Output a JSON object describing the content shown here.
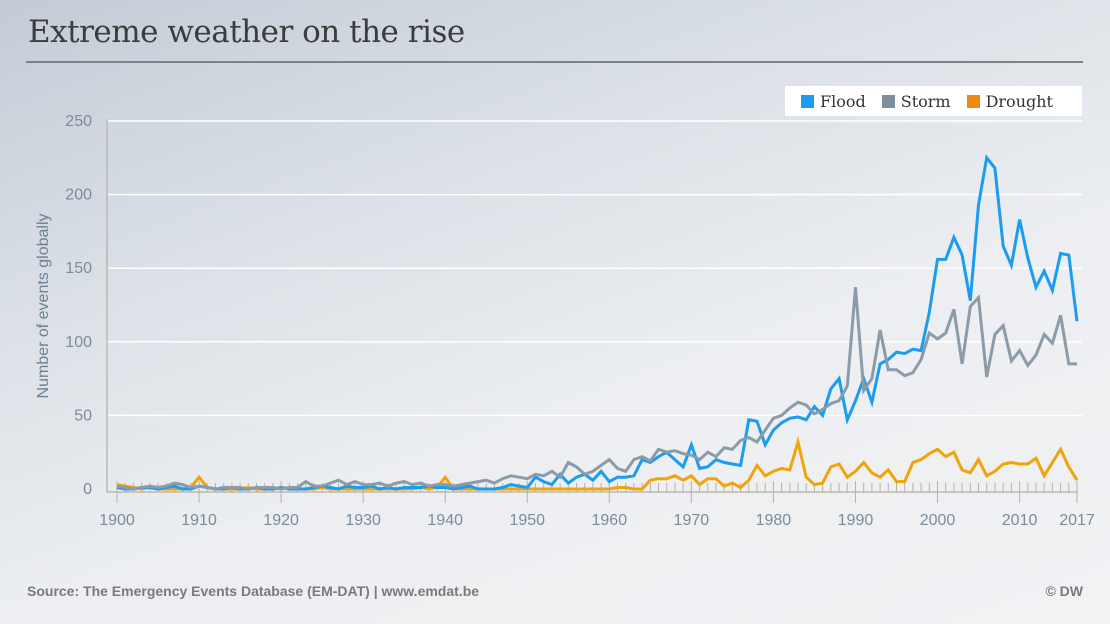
{
  "header": {
    "title": "Extreme weather on the rise"
  },
  "footer": {
    "source": "Source: The Emergency Events Database (EM-DAT) | www.emdat.be",
    "copyright": "© DW"
  },
  "chart_data": {
    "type": "line",
    "title": "Extreme weather on the rise",
    "xlabel": "",
    "ylabel": "Number of events globally",
    "xlim": [
      1900,
      2017
    ],
    "ylim": [
      0,
      250
    ],
    "yticks": [
      0,
      50,
      100,
      150,
      200,
      250
    ],
    "xticks": [
      1900,
      1910,
      1920,
      1930,
      1940,
      1950,
      1960,
      1970,
      1980,
      1990,
      2000,
      2010,
      2017
    ],
    "grid": "horizontal",
    "legend_position": "top-right",
    "x": [
      1900,
      1901,
      1902,
      1903,
      1904,
      1905,
      1906,
      1907,
      1908,
      1909,
      1910,
      1911,
      1912,
      1913,
      1914,
      1915,
      1916,
      1917,
      1918,
      1919,
      1920,
      1921,
      1922,
      1923,
      1924,
      1925,
      1926,
      1927,
      1928,
      1929,
      1930,
      1931,
      1932,
      1933,
      1934,
      1935,
      1936,
      1937,
      1938,
      1939,
      1940,
      1941,
      1942,
      1943,
      1944,
      1945,
      1946,
      1947,
      1948,
      1949,
      1950,
      1951,
      1952,
      1953,
      1954,
      1955,
      1956,
      1957,
      1958,
      1959,
      1960,
      1961,
      1962,
      1963,
      1964,
      1965,
      1966,
      1967,
      1968,
      1969,
      1970,
      1971,
      1972,
      1973,
      1974,
      1975,
      1976,
      1977,
      1978,
      1979,
      1980,
      1981,
      1982,
      1983,
      1984,
      1985,
      1986,
      1987,
      1988,
      1989,
      1990,
      1991,
      1992,
      1993,
      1994,
      1995,
      1996,
      1997,
      1998,
      1999,
      2000,
      2001,
      2002,
      2003,
      2004,
      2005,
      2006,
      2007,
      2008,
      2009,
      2010,
      2011,
      2012,
      2013,
      2014,
      2015,
      2016,
      2017
    ],
    "series": [
      {
        "name": "Flood",
        "color": "#1a9cf0",
        "values": [
          1,
          0,
          0,
          1,
          1,
          0,
          1,
          2,
          0,
          0,
          2,
          1,
          0,
          0,
          1,
          0,
          0,
          1,
          0,
          0,
          1,
          0,
          0,
          0,
          1,
          2,
          1,
          0,
          2,
          1,
          1,
          2,
          0,
          1,
          0,
          1,
          1,
          1,
          2,
          1,
          1,
          0,
          1,
          2,
          0,
          0,
          0,
          1,
          3,
          2,
          1,
          8,
          5,
          3,
          10,
          4,
          8,
          10,
          6,
          12,
          5,
          8,
          8,
          9,
          20,
          18,
          22,
          25,
          20,
          15,
          30,
          14,
          15,
          20,
          18,
          17,
          16,
          47,
          46,
          30,
          40,
          45,
          48,
          49,
          47,
          56,
          50,
          68,
          75,
          47,
          60,
          75,
          59,
          85,
          88,
          93,
          92,
          95,
          94,
          120,
          156,
          156,
          171,
          159,
          128,
          193,
          225,
          218,
          165,
          152,
          183,
          157,
          137,
          148,
          135,
          160,
          159,
          114
        ]
      },
      {
        "name": "Storm",
        "color": "#8c9ba8",
        "values": [
          2,
          1,
          0,
          1,
          2,
          1,
          2,
          4,
          3,
          1,
          2,
          1,
          0,
          1,
          1,
          1,
          0,
          1,
          1,
          1,
          0,
          1,
          1,
          5,
          2,
          2,
          4,
          6,
          3,
          5,
          3,
          3,
          4,
          2,
          4,
          5,
          3,
          4,
          2,
          3,
          3,
          2,
          3,
          4,
          5,
          6,
          4,
          7,
          9,
          8,
          7,
          10,
          9,
          12,
          8,
          18,
          15,
          10,
          12,
          16,
          20,
          14,
          12,
          20,
          22,
          19,
          27,
          25,
          26,
          24,
          23,
          20,
          25,
          22,
          28,
          27,
          33,
          35,
          32,
          40,
          48,
          50,
          55,
          59,
          57,
          51,
          54,
          58,
          60,
          70,
          137,
          67,
          75,
          108,
          81,
          81,
          77,
          79,
          88,
          106,
          102,
          106,
          122,
          85,
          124,
          130,
          76,
          105,
          111,
          87,
          94,
          84,
          91,
          105,
          99,
          118,
          85,
          85
        ]
      },
      {
        "name": "Drought",
        "color": "#f0a30a",
        "values": [
          3,
          2,
          1,
          0,
          1,
          0,
          0,
          0,
          0,
          1,
          8,
          1,
          0,
          0,
          0,
          0,
          1,
          0,
          0,
          0,
          1,
          0,
          0,
          0,
          0,
          1,
          0,
          0,
          0,
          0,
          0,
          0,
          0,
          0,
          0,
          0,
          0,
          1,
          0,
          1,
          8,
          0,
          0,
          0,
          0,
          0,
          0,
          0,
          0,
          0,
          0,
          0,
          0,
          0,
          0,
          0,
          0,
          0,
          0,
          0,
          0,
          1,
          1,
          0,
          0,
          6,
          7,
          7,
          9,
          6,
          9,
          3,
          7,
          7,
          2,
          4,
          1,
          6,
          16,
          9,
          12,
          14,
          13,
          32,
          8,
          3,
          4,
          15,
          17,
          8,
          12,
          18,
          11,
          8,
          13,
          5,
          5,
          18,
          20,
          24,
          27,
          22,
          25,
          13,
          11,
          20,
          9,
          12,
          17,
          18,
          17,
          17,
          21,
          9,
          18,
          27,
          15,
          6
        ]
      }
    ]
  }
}
